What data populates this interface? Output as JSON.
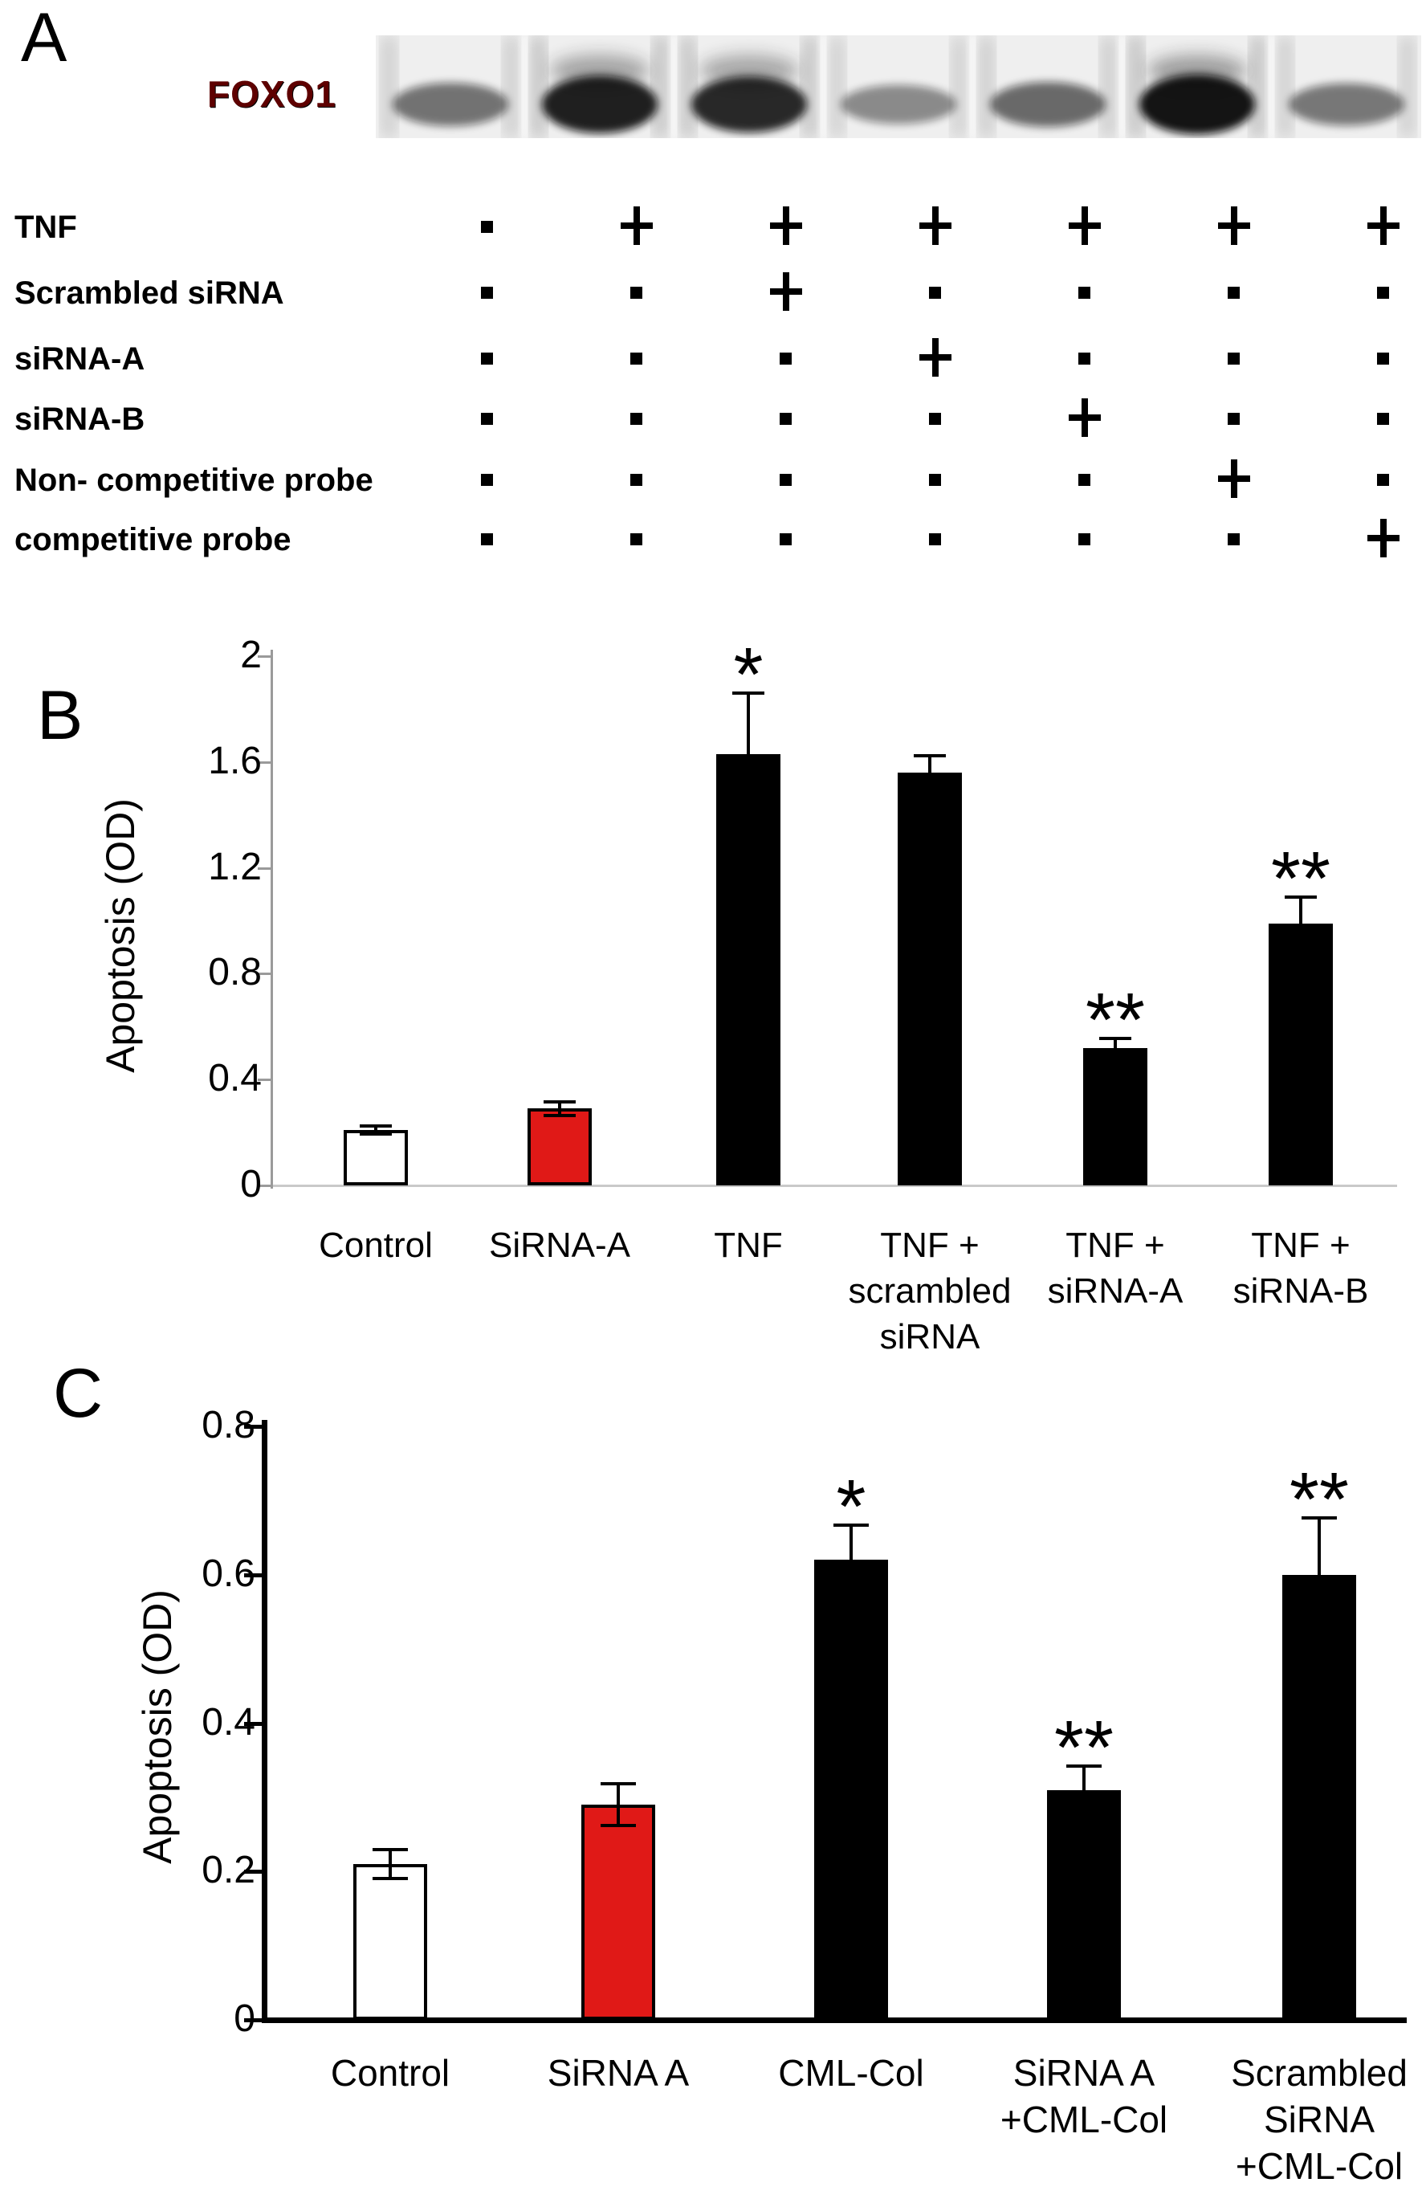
{
  "figure": {
    "background": "#ffffff",
    "accent_red": "#e01917"
  },
  "panel_a": {
    "label": "A",
    "blot_label": "FOXO1",
    "blot_label_color": "#5e0000",
    "blot": {
      "lanes": 7,
      "lane_intensities": [
        0.45,
        0.9,
        0.85,
        0.32,
        0.5,
        0.97,
        0.42
      ]
    },
    "symbols": {
      "present": "+",
      "absent": "-"
    },
    "treatments": [
      {
        "label": "TNF",
        "pattern": [
          "-",
          "+",
          "+",
          "+",
          "+",
          "+",
          "+"
        ]
      },
      {
        "label": "Scrambled siRNA",
        "pattern": [
          "-",
          "-",
          "+",
          "-",
          "-",
          "-",
          "-"
        ]
      },
      {
        "label": "siRNA-A",
        "pattern": [
          "-",
          "-",
          "-",
          "+",
          "-",
          "-",
          "-"
        ]
      },
      {
        "label": "siRNA-B",
        "pattern": [
          "-",
          "-",
          "-",
          "-",
          "+",
          "-",
          "-"
        ]
      },
      {
        "label": "Non- competitive probe",
        "pattern": [
          "-",
          "-",
          "-",
          "-",
          "-",
          "+",
          "-"
        ]
      },
      {
        "label": "competitive probe",
        "pattern": [
          "-",
          "-",
          "-",
          "-",
          "-",
          "-",
          "+"
        ]
      }
    ]
  },
  "chart_data": [
    {
      "panel_label": "B",
      "type": "bar",
      "title": "",
      "xlabel": "",
      "ylabel": "Apoptosis (OD)",
      "ylim": [
        0,
        2
      ],
      "yticks": [
        0,
        0.4,
        0.8,
        1.2,
        1.6,
        2
      ],
      "ytick_labels": [
        "0",
        "0.4",
        "0.8",
        "1.2",
        "1.6",
        "2"
      ],
      "grid": false,
      "legend": null,
      "categories": [
        [
          "Control"
        ],
        [
          "SiRNA-A"
        ],
        [
          "TNF"
        ],
        [
          "TNF +",
          "scrambled",
          "siRNA"
        ],
        [
          "TNF  +",
          "siRNA-A"
        ],
        [
          "TNF +",
          "siRNA-B"
        ]
      ],
      "values": [
        0.21,
        0.29,
        1.63,
        1.56,
        0.52,
        0.99
      ],
      "error_up": [
        0.015,
        0.027,
        0.23,
        0.065,
        0.035,
        0.1
      ],
      "error_down": [
        0.015,
        0.027,
        null,
        null,
        null,
        null
      ],
      "bar_colors": [
        "#ffffff",
        "#e01917",
        "#000000",
        "#000000",
        "#000000",
        "#000000"
      ],
      "significance": [
        "",
        "",
        "*",
        "",
        "**",
        "**"
      ]
    },
    {
      "panel_label": "C",
      "type": "bar",
      "title": "",
      "xlabel": "",
      "ylabel": "Apoptosis (OD)",
      "ylim": [
        0,
        0.8
      ],
      "yticks": [
        0,
        0.2,
        0.4,
        0.6,
        0.8
      ],
      "ytick_labels": [
        "0",
        "0.2",
        "0.4",
        "0.6",
        "0.8"
      ],
      "grid": false,
      "legend": null,
      "categories": [
        [
          "Control"
        ],
        [
          "SiRNA A"
        ],
        [
          "CML-Col"
        ],
        [
          "SiRNA A",
          "+CML-Col"
        ],
        [
          "Scrambled",
          "SiRNA",
          "+CML-Col"
        ]
      ],
      "values": [
        0.21,
        0.29,
        0.62,
        0.31,
        0.6
      ],
      "error_up": [
        0.02,
        0.028,
        0.047,
        0.032,
        0.077
      ],
      "error_down": [
        0.02,
        0.028,
        null,
        null,
        null
      ],
      "bar_colors": [
        "#ffffff",
        "#e01917",
        "#000000",
        "#000000",
        "#000000"
      ],
      "significance": [
        "",
        "",
        "*",
        "**",
        "**"
      ]
    }
  ]
}
